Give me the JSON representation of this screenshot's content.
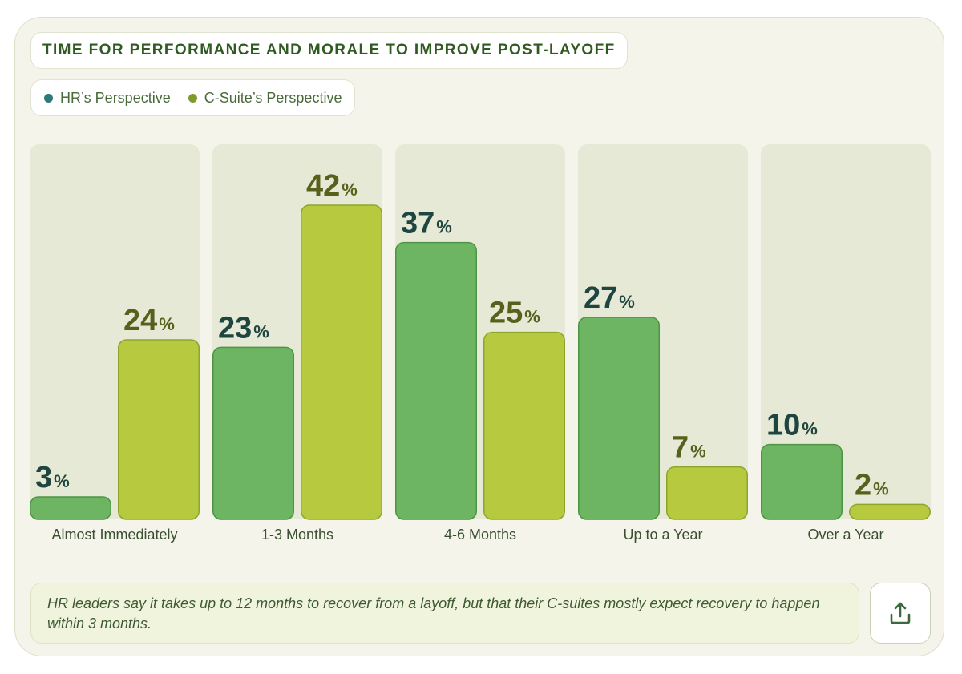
{
  "title": "TIME FOR PERFORMANCE AND MORALE TO IMPROVE POST-LAYOFF",
  "legend": {
    "hr": {
      "label": "HR’s Perspective",
      "color": "#2f7a78"
    },
    "cs": {
      "label": "C-Suite’s Perspective",
      "color": "#7e9b2c"
    }
  },
  "colors": {
    "hr_bar": "#6db562",
    "hr_bar_stroke": "#4f9444",
    "hr_value": "#1f4540",
    "cs_bar": "#b6c93f",
    "cs_bar_stroke": "#8ea52c",
    "cs_value": "#58601c",
    "track": "#e6e9d6"
  },
  "chart_data": {
    "type": "bar",
    "categories": [
      "Almost Immediately",
      "1-3 Months",
      "4-6 Months",
      "Up to a Year",
      "Over a Year"
    ],
    "series": [
      {
        "name": "HR’s Perspective",
        "values": [
          3,
          23,
          37,
          27,
          10
        ]
      },
      {
        "name": "C-Suite’s Perspective",
        "values": [
          24,
          42,
          25,
          7,
          2
        ]
      }
    ],
    "unit": "%",
    "title": "TIME FOR PERFORMANCE AND MORALE TO IMPROVE POST-LAYOFF",
    "ylim": [
      0,
      42
    ],
    "legend_position": "top-left",
    "grid": false
  },
  "note": "HR leaders say it takes up to 12 months to recover from a layoff, but that their C-suites mostly expect recovery to happen within 3 months.",
  "share_icon": "share-upload-icon"
}
